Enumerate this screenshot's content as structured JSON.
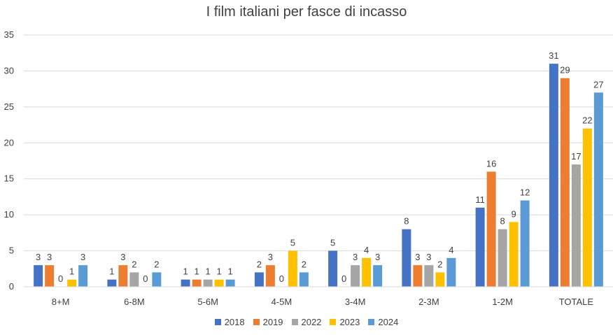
{
  "chart_data": {
    "type": "bar",
    "title": "I film italiani per fasce di incasso",
    "categories": [
      "8+M",
      "6-8M",
      "5-6M",
      "4-5M",
      "3-4M",
      "2-3M",
      "1-2M",
      "TOTALE"
    ],
    "series": [
      {
        "name": "2018",
        "color": "#4472C4",
        "values": [
          3,
          1,
          1,
          2,
          5,
          8,
          11,
          31
        ]
      },
      {
        "name": "2019",
        "color": "#ED7D31",
        "values": [
          3,
          3,
          1,
          3,
          0,
          3,
          16,
          29
        ]
      },
      {
        "name": "2022",
        "color": "#A5A5A5",
        "values": [
          0,
          2,
          1,
          0,
          3,
          3,
          8,
          17
        ]
      },
      {
        "name": "2023",
        "color": "#FFC000",
        "values": [
          1,
          0,
          1,
          5,
          4,
          2,
          9,
          22
        ]
      },
      {
        "name": "2024",
        "color": "#5B9BD5",
        "values": [
          3,
          2,
          1,
          2,
          3,
          4,
          12,
          27
        ]
      }
    ],
    "ylim": [
      0,
      35
    ],
    "yticks": [
      0,
      5,
      10,
      15,
      20,
      25,
      30,
      35
    ],
    "grid": true,
    "legend_position": "bottom",
    "data_labels": true
  }
}
